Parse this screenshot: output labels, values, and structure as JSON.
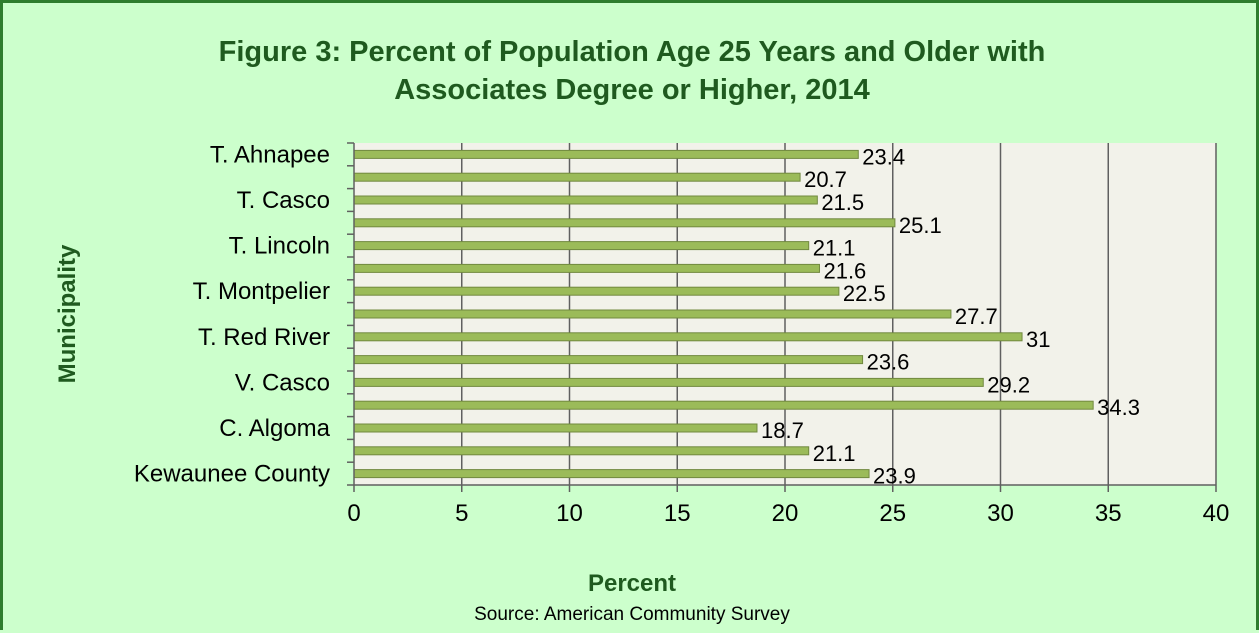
{
  "chart_data": {
    "type": "bar",
    "orientation": "horizontal",
    "title_lines": [
      "Figure 3: Percent of Population Age 25 Years and Older with",
      "Associates Degree or Higher, 2014"
    ],
    "xlabel": "Percent",
    "ylabel": "Municipality",
    "source": "Source: American Community Survey",
    "xlim": [
      0,
      40
    ],
    "x_ticks": [
      "0",
      "5",
      "10",
      "15",
      "20",
      "25",
      "30",
      "35",
      "40"
    ],
    "categories": [
      "T. Ahnapee",
      "",
      "T. Casco",
      "",
      "T. Lincoln",
      "",
      "T. Montpelier",
      "",
      "T. Red River",
      "",
      "V. Casco",
      "",
      "C. Algoma",
      "",
      "Kewaunee County"
    ],
    "values": [
      23.4,
      20.7,
      21.5,
      25.1,
      21.1,
      21.6,
      22.5,
      27.7,
      31,
      23.6,
      29.2,
      34.3,
      18.7,
      21.1,
      23.9
    ],
    "value_labels": [
      "23.4",
      "20.7",
      "21.5",
      "25.1",
      "21.1",
      "21.6",
      "22.5",
      "27.7",
      "31",
      "23.6",
      "29.2",
      "34.3",
      "18.7",
      "21.1",
      "23.9"
    ],
    "legend": "none",
    "grid": "vertical major gridlines",
    "colors": {
      "background": "#ccffcc",
      "plot_area": "#f2f2ea",
      "bar_fill": "#9bbb59",
      "bar_stroke": "#71893f",
      "gridline": "#606060",
      "title": "#1f5a1f",
      "border": "#2e7d2e"
    }
  }
}
